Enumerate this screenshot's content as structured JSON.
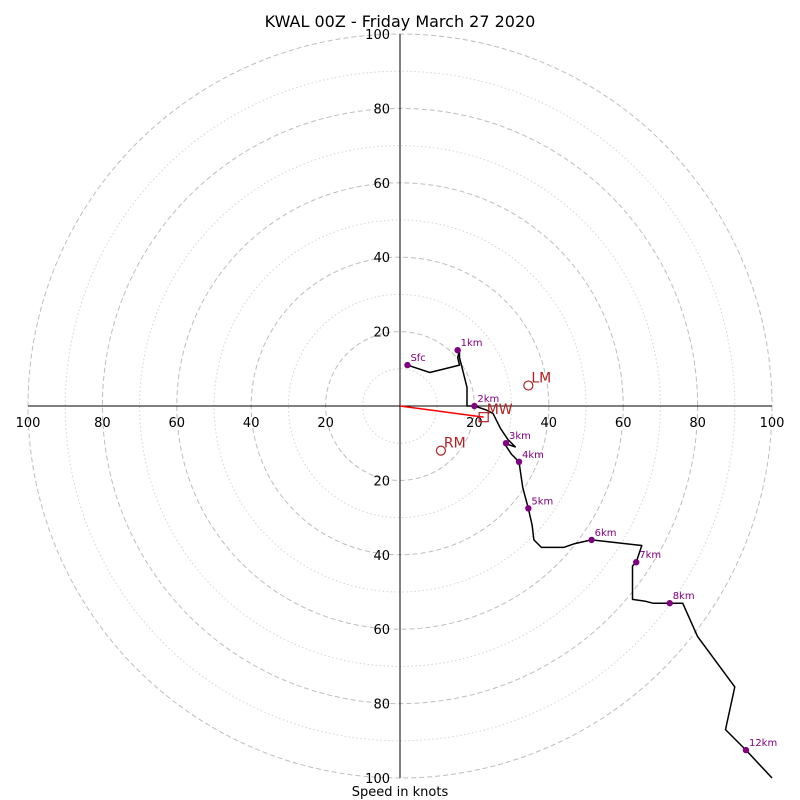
{
  "chart_data": {
    "type": "line",
    "title": "KWAL 00Z - Friday March 27 2020",
    "xlabel": "Speed in knots",
    "ring_major": [
      20,
      40,
      60,
      80,
      100
    ],
    "ring_minor": [
      10,
      30,
      50,
      70,
      90
    ],
    "tick_labels": {
      "left": [
        "100",
        "80",
        "60",
        "40",
        "20"
      ],
      "right": [
        "20",
        "40",
        "60",
        "80",
        "100"
      ],
      "up": [
        "20",
        "40",
        "60",
        "80",
        "100"
      ],
      "down": [
        "20",
        "40",
        "60",
        "80",
        "100"
      ]
    },
    "ticks": [
      20,
      40,
      60,
      80,
      100
    ],
    "trace": [
      {
        "x": 2,
        "y": 11
      },
      {
        "x": 8,
        "y": 9
      },
      {
        "x": 16,
        "y": 11
      },
      {
        "x": 15.5,
        "y": 13
      },
      {
        "x": 16,
        "y": 15
      },
      {
        "x": 16,
        "y": 13
      },
      {
        "x": 18,
        "y": 5
      },
      {
        "x": 18,
        "y": 0
      },
      {
        "x": 20,
        "y": 0
      },
      {
        "x": 23,
        "y": -1
      },
      {
        "x": 25,
        "y": -2
      },
      {
        "x": 27,
        "y": -6
      },
      {
        "x": 29,
        "y": -9
      },
      {
        "x": 31,
        "y": -11
      },
      {
        "x": 28,
        "y": -10
      },
      {
        "x": 30,
        "y": -13
      },
      {
        "x": 32,
        "y": -15
      },
      {
        "x": 33,
        "y": -22
      },
      {
        "x": 34.5,
        "y": -27.5
      },
      {
        "x": 35.5,
        "y": -32
      },
      {
        "x": 36,
        "y": -36
      },
      {
        "x": 38,
        "y": -38
      },
      {
        "x": 44,
        "y": -38
      },
      {
        "x": 47,
        "y": -37
      },
      {
        "x": 51.5,
        "y": -36
      },
      {
        "x": 65,
        "y": -37.5
      },
      {
        "x": 63.5,
        "y": -42
      },
      {
        "x": 62.5,
        "y": -43
      },
      {
        "x": 62.5,
        "y": -52
      },
      {
        "x": 66,
        "y": -52.5
      },
      {
        "x": 68,
        "y": -53
      },
      {
        "x": 72.5,
        "y": -53
      },
      {
        "x": 76,
        "y": -53
      },
      {
        "x": 80,
        "y": -62
      },
      {
        "x": 90,
        "y": -75.5
      },
      {
        "x": 87.5,
        "y": -87
      },
      {
        "x": 93,
        "y": -92.5
      },
      {
        "x": 100,
        "y": -100
      }
    ],
    "height_markers": [
      {
        "label": "Sfc",
        "x": 2,
        "y": 11
      },
      {
        "label": "1km",
        "x": 15.5,
        "y": 15
      },
      {
        "label": "2km",
        "x": 20,
        "y": 0
      },
      {
        "label": "3km",
        "x": 28.5,
        "y": -10
      },
      {
        "label": "4km",
        "x": 32,
        "y": -15
      },
      {
        "label": "5km",
        "x": 34.5,
        "y": -27.5
      },
      {
        "label": "6km",
        "x": 51.5,
        "y": -36
      },
      {
        "label": "7km",
        "x": 63.5,
        "y": -42
      },
      {
        "label": "8km",
        "x": 72.5,
        "y": -53
      },
      {
        "label": "12km",
        "x": 93,
        "y": -92.5
      }
    ],
    "motions": [
      {
        "label": "LM",
        "x": 34.5,
        "y": 5.5,
        "marker": "circle"
      },
      {
        "label": "RM",
        "x": 11,
        "y": -12,
        "marker": "circle"
      },
      {
        "label": "MW",
        "x": 22.5,
        "y": -3,
        "marker": "square"
      }
    ],
    "mean_wind_vector": {
      "x": 22.5,
      "y": -3
    },
    "axis_range": [
      -100,
      100
    ],
    "grid": true,
    "colors": {
      "trace": "#000000",
      "markers": "#800080",
      "motions": "#b22222",
      "vector": "#ff0000",
      "grid": "#bdbdbd"
    }
  }
}
